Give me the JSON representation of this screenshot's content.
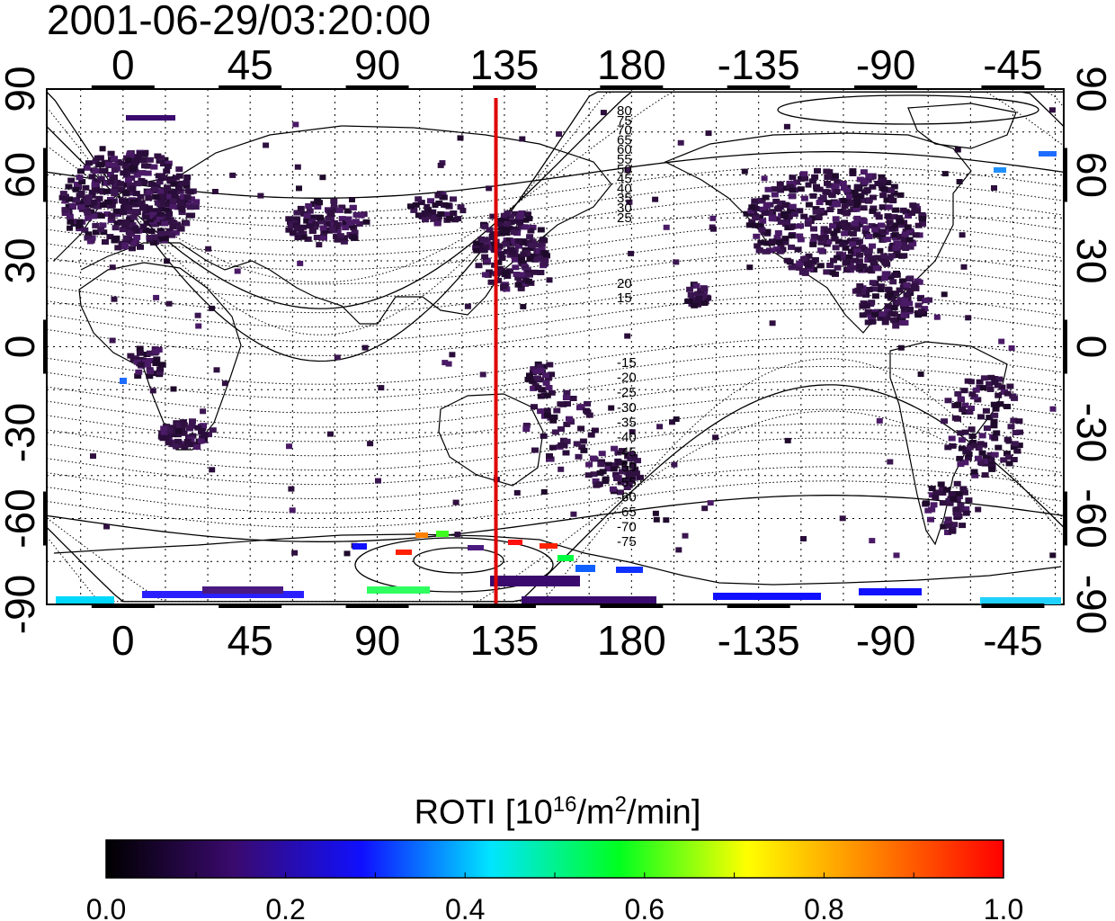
{
  "timestamp": "2001-06-29/03:20:00",
  "map": {
    "lon_ticks": [
      "0",
      "45",
      "90",
      "135",
      "180",
      "-135",
      "-90",
      "-45"
    ],
    "lat_ticks": [
      "90",
      "60",
      "30",
      "0",
      "-30",
      "-60",
      "-90"
    ],
    "marker_meridian_lon": 132,
    "marker_color": "#e00000",
    "contour_labels_north": [
      "80",
      "75",
      "70",
      "65",
      "60",
      "55",
      "50",
      "45",
      "40",
      "35",
      "30",
      "25",
      "20",
      "15"
    ],
    "contour_labels_south": [
      "-15",
      "-20",
      "-25",
      "-30",
      "-35",
      "-40",
      "-45",
      "-50",
      "-55",
      "-60",
      "-65",
      "-70",
      "-75"
    ]
  },
  "colorbar": {
    "title_prefix": "ROTI  [10",
    "title_sup1": "16",
    "title_mid": "/m",
    "title_sup2": "2",
    "title_suffix": "/min]",
    "tick_labels": [
      "0.0",
      "0.2",
      "0.4",
      "0.6",
      "0.8",
      "1.0"
    ],
    "min": 0.0,
    "max": 1.0,
    "colors": [
      "#000000",
      "#3a0a6e",
      "#1010ff",
      "#00e5ff",
      "#00ff20",
      "#ffff00",
      "#ff8000",
      "#ff0000"
    ]
  }
}
